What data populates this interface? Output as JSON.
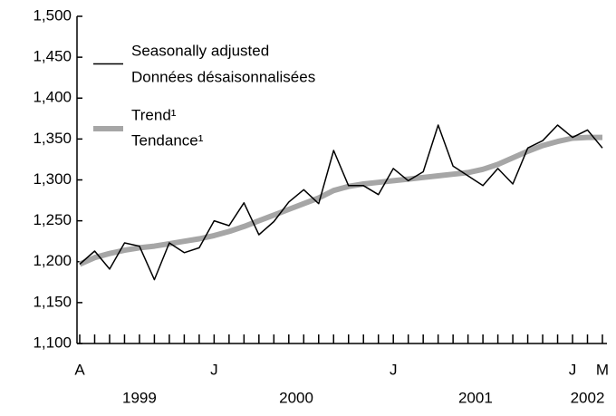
{
  "chart_data": {
    "type": "line",
    "categories": [
      "A",
      null,
      null,
      null,
      null,
      null,
      null,
      null,
      null,
      "J",
      null,
      null,
      null,
      null,
      null,
      null,
      null,
      null,
      null,
      null,
      null,
      "J",
      null,
      null,
      null,
      null,
      null,
      null,
      null,
      null,
      null,
      null,
      null,
      "J",
      null,
      "M"
    ],
    "years": [
      "1999",
      "2000",
      "2001",
      "2002"
    ],
    "series": [
      {
        "name": [
          "Seasonally adjusted",
          "Données désaisonnalisées"
        ],
        "color": "#000000",
        "values": [
          1197,
          1213,
          1191,
          1223,
          1219,
          1178,
          1223,
          1211,
          1217,
          1250,
          1244,
          1272,
          1233,
          1249,
          1273,
          1288,
          1271,
          1336,
          1293,
          1293,
          1282,
          1314,
          1299,
          1310,
          1367,
          1317,
          1305,
          1293,
          1314,
          1295,
          1339,
          1348,
          1367,
          1352,
          1361,
          1339
        ]
      },
      {
        "name": [
          "Trend¹",
          "Tendance¹"
        ],
        "color": "#a6a6a6",
        "values": [
          1197,
          1205,
          1210,
          1214,
          1217,
          1219,
          1222,
          1225,
          1228,
          1232,
          1237,
          1243,
          1250,
          1257,
          1264,
          1271,
          1278,
          1287,
          1292,
          1295,
          1297,
          1299,
          1301,
          1303,
          1305,
          1307,
          1309,
          1313,
          1319,
          1327,
          1335,
          1342,
          1347,
          1351,
          1352,
          1352
        ]
      }
    ],
    "ylim": [
      1100,
      1500
    ],
    "yticks": [
      {
        "value": 1100,
        "label": "1,100"
      },
      {
        "value": 1150,
        "label": "1,150"
      },
      {
        "value": 1200,
        "label": "1,200"
      },
      {
        "value": 1250,
        "label": "1,250"
      },
      {
        "value": 1300,
        "label": "1,300"
      },
      {
        "value": 1350,
        "label": "1,350"
      },
      {
        "value": 1400,
        "label": "1,400"
      },
      {
        "value": 1450,
        "label": "1,450"
      },
      {
        "value": 1500,
        "label": "1,500"
      }
    ],
    "legend": "upper left"
  }
}
